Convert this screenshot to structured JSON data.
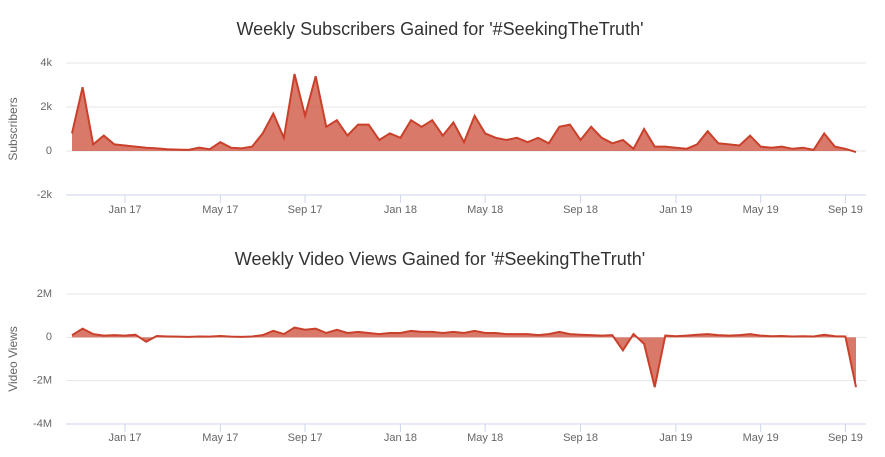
{
  "chart_data": [
    {
      "type": "area",
      "title": "Weekly Subscribers Gained for '#SeekingTheTruth'",
      "y_label": "Subscribers",
      "categories": [
        null,
        null,
        null,
        null,
        null,
        "Jan 17",
        null,
        null,
        null,
        null,
        null,
        null,
        null,
        null,
        "May 17",
        null,
        null,
        null,
        null,
        null,
        null,
        null,
        "Sep 17",
        null,
        null,
        null,
        null,
        null,
        null,
        null,
        null,
        "Jan 18",
        null,
        null,
        null,
        null,
        null,
        null,
        null,
        "May 18",
        null,
        null,
        null,
        null,
        null,
        null,
        null,
        null,
        "Sep 18",
        null,
        null,
        null,
        null,
        null,
        null,
        null,
        null,
        "Jan 19",
        null,
        null,
        null,
        null,
        null,
        null,
        null,
        "May 19",
        null,
        null,
        null,
        null,
        null,
        null,
        null,
        "Sep 19",
        null
      ],
      "series": [
        {
          "name": "Subscribers",
          "color": "#c9402b",
          "values": [
            800,
            2900,
            300,
            700,
            300,
            250,
            200,
            150,
            120,
            80,
            60,
            50,
            150,
            80,
            400,
            150,
            120,
            200,
            800,
            1700,
            600,
            3500,
            1600,
            3400,
            1100,
            1400,
            700,
            1200,
            1200,
            500,
            800,
            600,
            1400,
            1100,
            1400,
            700,
            1300,
            400,
            1600,
            800,
            600,
            500,
            600,
            400,
            600,
            350,
            1100,
            1200,
            500,
            1100,
            600,
            350,
            500,
            100,
            1000,
            200,
            200,
            150,
            100,
            300,
            900,
            350,
            300,
            250,
            700,
            200,
            150,
            200,
            100,
            150,
            50,
            800,
            200,
            100,
            -50
          ]
        }
      ],
      "ylim": [
        -2000,
        4000
      ],
      "yticks": [
        {
          "value": -2000,
          "label": "-2k"
        },
        0,
        {
          "value": 2000,
          "label": "2k"
        },
        {
          "value": 4000,
          "label": "4k"
        }
      ],
      "grid": true
    },
    {
      "type": "area",
      "title": "Weekly Video Views Gained for '#SeekingTheTruth'",
      "y_label": "Video Views",
      "categories": [
        null,
        null,
        null,
        null,
        null,
        "Jan 17",
        null,
        null,
        null,
        null,
        null,
        null,
        null,
        null,
        "May 17",
        null,
        null,
        null,
        null,
        null,
        null,
        null,
        "Sep 17",
        null,
        null,
        null,
        null,
        null,
        null,
        null,
        null,
        "Jan 18",
        null,
        null,
        null,
        null,
        null,
        null,
        null,
        "May 18",
        null,
        null,
        null,
        null,
        null,
        null,
        null,
        null,
        "Sep 18",
        null,
        null,
        null,
        null,
        null,
        null,
        null,
        null,
        "Jan 19",
        null,
        null,
        null,
        null,
        null,
        null,
        null,
        "May 19",
        null,
        null,
        null,
        null,
        null,
        null,
        null,
        "Sep 19",
        null
      ],
      "series": [
        {
          "name": "Video Views",
          "color": "#c9402b",
          "values": [
            100000,
            400000,
            150000,
            80000,
            100000,
            80000,
            120000,
            -200000,
            60000,
            40000,
            30000,
            20000,
            40000,
            30000,
            60000,
            30000,
            20000,
            40000,
            100000,
            300000,
            150000,
            450000,
            350000,
            400000,
            200000,
            350000,
            200000,
            250000,
            200000,
            150000,
            200000,
            200000,
            300000,
            250000,
            250000,
            200000,
            250000,
            200000,
            300000,
            200000,
            200000,
            150000,
            150000,
            150000,
            100000,
            150000,
            250000,
            150000,
            120000,
            100000,
            80000,
            100000,
            -600000,
            150000,
            -300000,
            -2300000,
            80000,
            50000,
            80000,
            120000,
            150000,
            100000,
            80000,
            100000,
            150000,
            80000,
            50000,
            60000,
            40000,
            50000,
            40000,
            120000,
            50000,
            40000,
            -2300000
          ]
        }
      ],
      "ylim": [
        -4000000,
        2000000
      ],
      "yticks": [
        {
          "value": -4000000,
          "label": "-4M"
        },
        {
          "value": -2000000,
          "label": "-2M"
        },
        0,
        {
          "value": 2000000,
          "label": "2M"
        }
      ],
      "grid": true
    }
  ]
}
